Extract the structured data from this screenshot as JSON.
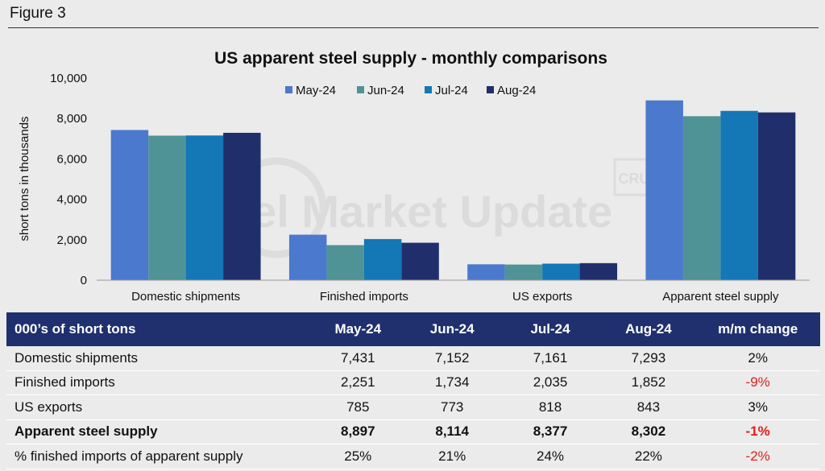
{
  "figure_label": "Figure 3",
  "watermark": {
    "logo_text": "Steel Market Update",
    "stamp": "CRU"
  },
  "colors": {
    "May-24": "#4a79cd",
    "Jun-24": "#4f9396",
    "Jul-24": "#1477b6",
    "Aug-24": "#202f6c",
    "table_header": "#20306e",
    "negative": "#e0201b"
  },
  "chart_data": {
    "type": "bar",
    "title": "US apparent steel supply - monthly comparisons",
    "xlabel": "",
    "ylabel": "short tons in thousands",
    "ylim": [
      0,
      10000
    ],
    "yticks": [
      {
        "value": 0,
        "label": "0"
      },
      {
        "value": 2000,
        "label": "2,000"
      },
      {
        "value": 4000,
        "label": "4,000"
      },
      {
        "value": 6000,
        "label": "6,000"
      },
      {
        "value": 8000,
        "label": "8,000"
      },
      {
        "value": 10000,
        "label": "10,000"
      }
    ],
    "grid": false,
    "legend_position": "top",
    "categories": [
      "Domestic shipments",
      "Finished imports",
      "US exports",
      "Apparent steel supply"
    ],
    "series": [
      {
        "name": "May-24",
        "values": [
          7431,
          2251,
          785,
          8897
        ]
      },
      {
        "name": "Jun-24",
        "values": [
          7152,
          1734,
          773,
          8114
        ]
      },
      {
        "name": "Jul-24",
        "values": [
          7161,
          2035,
          818,
          8377
        ]
      },
      {
        "name": "Aug-24",
        "values": [
          7293,
          1852,
          843,
          8302
        ]
      }
    ]
  },
  "table": {
    "headers": [
      "000’s of short tons",
      "May-24",
      "Jun-24",
      "Jul-24",
      "Aug-24",
      "m/m change"
    ],
    "rows": [
      {
        "label": "Domestic shipments",
        "cells": [
          "7,431",
          "7,152",
          "7,161",
          "7,293"
        ],
        "change": "2%",
        "negative": false,
        "bold": false
      },
      {
        "label": "Finished imports",
        "cells": [
          "2,251",
          "1,734",
          "2,035",
          "1,852"
        ],
        "change": "-9%",
        "negative": true,
        "bold": false
      },
      {
        "label": "US exports",
        "cells": [
          "785",
          "773",
          "818",
          "843"
        ],
        "change": "3%",
        "negative": false,
        "bold": false
      },
      {
        "label": "Apparent steel supply",
        "cells": [
          "8,897",
          "8,114",
          "8,377",
          "8,302"
        ],
        "change": "-1%",
        "negative": true,
        "bold": true
      },
      {
        "label": "% finished imports of apparent supply",
        "cells": [
          "25%",
          "21%",
          "24%",
          "22%"
        ],
        "change": "-2%",
        "negative": true,
        "bold": false
      }
    ]
  }
}
